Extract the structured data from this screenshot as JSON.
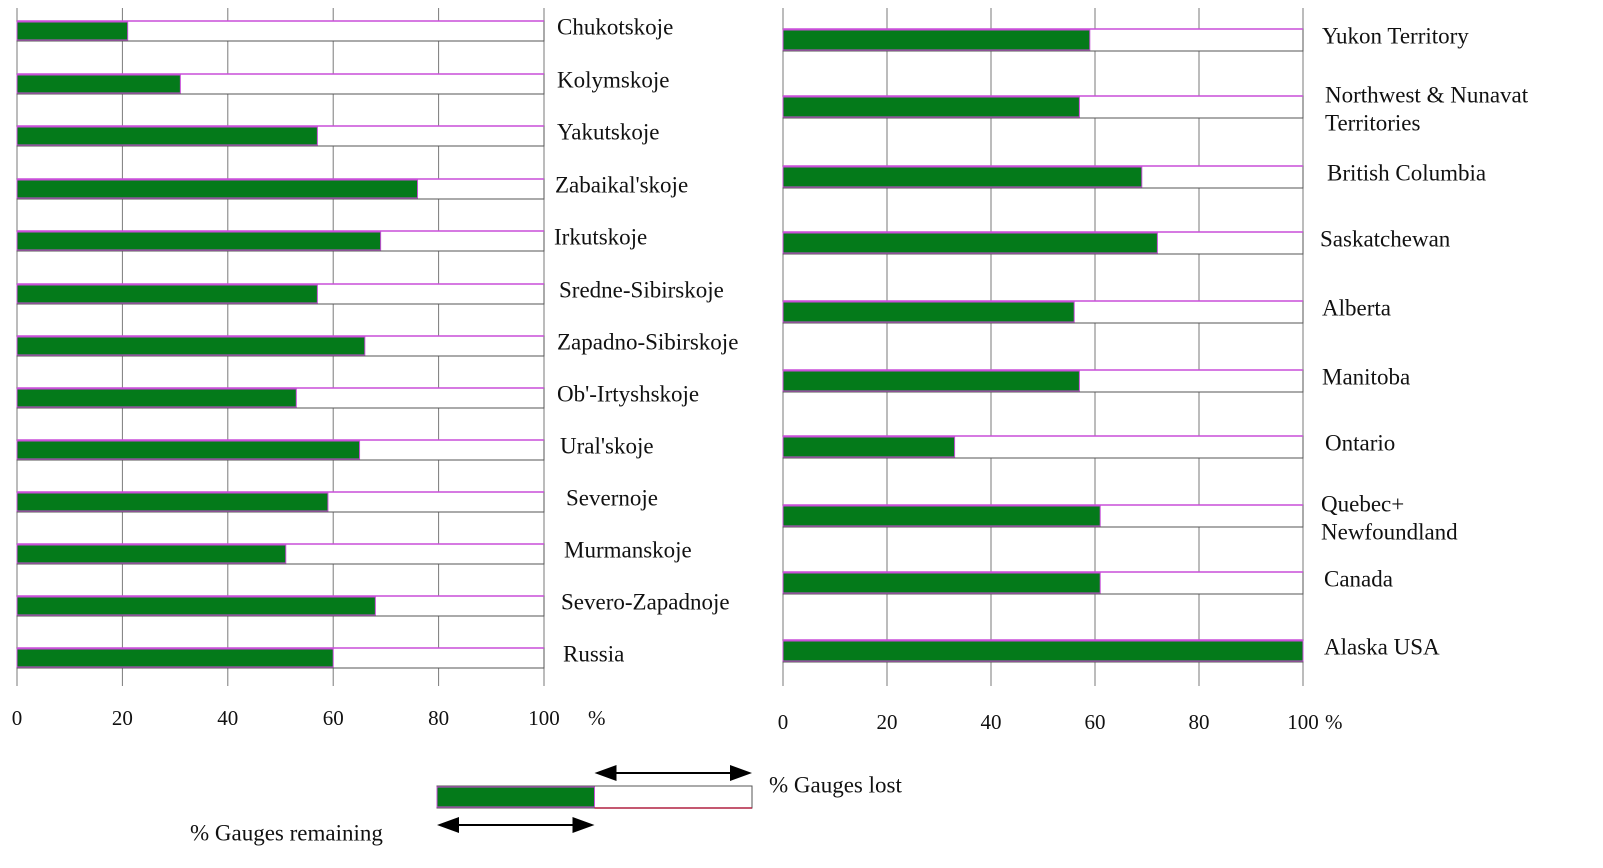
{
  "chart_data": [
    {
      "type": "bar",
      "orientation": "horizontal",
      "stacked": true,
      "categories": [
        "Chukotskoje",
        "Kolymskoje",
        "Yakutskoje",
        "Zabaikal'skoje",
        "Irkutskoje",
        "Sredne-Sibirskoje",
        "Zapadno-Sibirskoje",
        "Ob'-Irtyshskoje",
        "Ural'skoje",
        "Severnoje",
        "Murmanskoje",
        "Severo-Zapadnoje",
        "Russia"
      ],
      "series": [
        {
          "name": "% Gauges remaining",
          "values": [
            21,
            31,
            57,
            76,
            69,
            57,
            66,
            53,
            65,
            59,
            51,
            68,
            60
          ]
        },
        {
          "name": "% Gauges lost",
          "values": [
            79,
            69,
            43,
            24,
            31,
            43,
            34,
            47,
            35,
            41,
            49,
            32,
            40
          ]
        }
      ],
      "xlim": [
        0,
        100
      ],
      "xticks": [
        "0",
        "20",
        "40",
        "60",
        "80",
        "100"
      ],
      "xunit": "%",
      "grid": true
    },
    {
      "type": "bar",
      "orientation": "horizontal",
      "stacked": true,
      "categories": [
        "Yukon Territory",
        "Northwest & Nunavat Territories",
        "British Columbia",
        "Saskatchewan",
        "Alberta",
        "Manitoba",
        "Ontario",
        "Quebec+ Newfoundland",
        "Canada",
        "Alaska USA"
      ],
      "series": [
        {
          "name": "% Gauges remaining",
          "values": [
            59,
            57,
            69,
            72,
            56,
            57,
            33,
            61,
            61,
            100
          ]
        },
        {
          "name": "% Gauges lost",
          "values": [
            41,
            43,
            31,
            28,
            44,
            43,
            67,
            39,
            39,
            0
          ]
        }
      ],
      "xlim": [
        0,
        100
      ],
      "xticks": [
        "0",
        "20",
        "40",
        "60",
        "80",
        "100"
      ],
      "xunit": "%",
      "grid": true
    }
  ],
  "left_labels": [
    "Chukotskoje",
    "Kolymskoje",
    "Yakutskoje",
    "Zabaikal'skoje",
    "Irkutskoje",
    "Sredne-Sibirskoje",
    "Zapadno-Sibirskoje",
    "Ob'-Irtyshskoje",
    "Ural'skoje",
    "Severnoje",
    "Murmanskoje",
    "Severo-Zapadnoje",
    "Russia"
  ],
  "right_labels": [
    [
      "Yukon Territory"
    ],
    [
      "Northwest & Nunavat",
      "Territories"
    ],
    [
      "British Columbia"
    ],
    [
      "Saskatchewan"
    ],
    [
      "Alberta"
    ],
    [
      "Manitoba"
    ],
    [
      "Ontario"
    ],
    [
      "Quebec+",
      "Newfoundland"
    ],
    [
      "Canada"
    ],
    [
      "Alaska USA"
    ]
  ],
  "legend": {
    "remaining": "% Gauges remaining",
    "lost": "% Gauges lost",
    "remaining_pct": 50
  },
  "colors": {
    "remaining": "#047a1a",
    "lost_fill": "#ffffff",
    "bar_outline": "#c84fd8",
    "grid": "#7a7a7a",
    "lost_edge": "#b02040"
  }
}
